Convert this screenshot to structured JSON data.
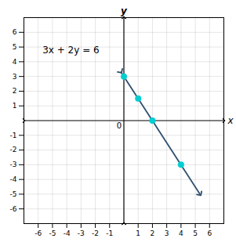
{
  "chart_data": {
    "type": "scatter",
    "xlabel": "x",
    "ylabel": "y",
    "x": [
      0,
      1,
      2,
      4
    ],
    "values": [
      3,
      1.5,
      0,
      -3
    ],
    "color": "#00CED1",
    "line": {
      "x": [
        -0.22,
        5.33
      ],
      "values": [
        3.33,
        -5.0
      ],
      "color": "#2F4F6F"
    },
    "annotations": [
      {
        "text": "3x + 2y = 6",
        "x": -5.7,
        "y": 4.6
      }
    ],
    "origin_label": "0",
    "xlim": [
      -7,
      7
    ],
    "ylim": [
      -7,
      7
    ],
    "xticks": [
      -6,
      -5,
      -4,
      -3,
      -2,
      -1,
      1,
      2,
      3,
      4,
      5,
      6
    ],
    "yticks": [
      -6,
      -5,
      -4,
      -3,
      -2,
      -1,
      1,
      2,
      3,
      4,
      5,
      6
    ],
    "grid": true
  }
}
